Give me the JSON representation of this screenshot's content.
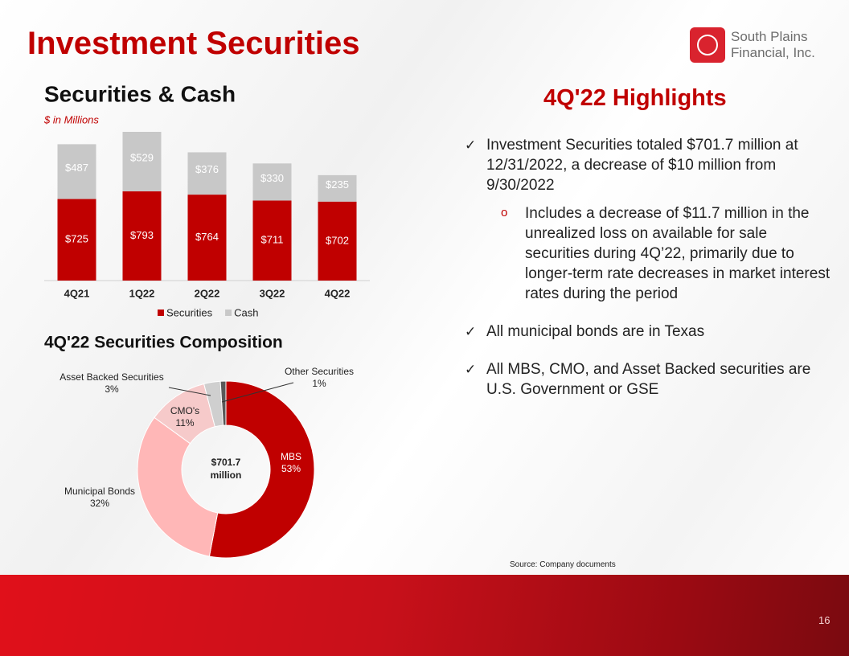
{
  "header": {
    "title": "Investment Securities",
    "logo_lines": [
      "South Plains",
      "Financial, Inc."
    ]
  },
  "chart_data": [
    {
      "type": "stacked-bar",
      "title": "Securities & Cash",
      "subtitle": "$ in Millions",
      "categories": [
        "4Q21",
        "1Q22",
        "2Q22",
        "3Q22",
        "4Q22"
      ],
      "series": [
        {
          "name": "Securities",
          "color": "#c00000",
          "values": [
            725,
            793,
            764,
            711,
            702
          ],
          "value_labels": [
            "$725",
            "$793",
            "$764",
            "$711",
            "$702"
          ]
        },
        {
          "name": "Cash",
          "color": "#c8c8c8",
          "values": [
            487,
            529,
            376,
            330,
            235
          ],
          "value_labels": [
            "$487",
            "$529",
            "$376",
            "$330",
            "$235"
          ]
        }
      ],
      "legend": "bottom"
    },
    {
      "type": "donut",
      "title": "4Q'22 Securities Composition",
      "center_label": [
        "$701.7",
        "million"
      ],
      "categories": [
        "MBS",
        "Municipal Bonds",
        "CMO's",
        "Asset Backed Securities",
        "Other Securities"
      ],
      "values": [
        53,
        32,
        11,
        3,
        1
      ],
      "value_labels": [
        "53%",
        "32%",
        "11%",
        "3%",
        "1%"
      ],
      "colors": [
        "#c00000",
        "#ffb7b7",
        "#f6caca",
        "#cfcfcf",
        "#595959"
      ]
    }
  ],
  "highlights": {
    "title": "4Q'22 Highlights",
    "bullets": [
      {
        "text": "Investment Securities totaled $701.7 million at 12/31/2022, a decrease of $10 million from 9/30/2022",
        "sub": [
          "Includes a decrease of $11.7 million in the unrealized loss on available for sale securities during 4Q’22, primarily due to longer-term rate decreases in market interest rates during the period"
        ]
      },
      {
        "text": "All municipal bonds are in Texas",
        "sub": []
      },
      {
        "text": "All MBS, CMO, and Asset Backed securities are U.S. Government or GSE",
        "sub": []
      }
    ]
  },
  "footer": {
    "source": "Source: Company documents",
    "page_number": "16"
  }
}
